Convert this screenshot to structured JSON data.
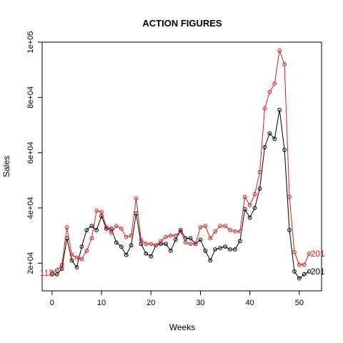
{
  "chart_data": {
    "type": "line",
    "title": "ACTION FIGURES",
    "xlabel": "Weeks",
    "ylabel": "Sales",
    "xlim": [
      -2,
      54.5
    ],
    "ylim": [
      10000,
      100000
    ],
    "x_ticks": [
      0,
      10,
      20,
      30,
      40,
      50
    ],
    "y_ticks": [
      20000,
      40000,
      60000,
      80000,
      100000
    ],
    "y_tick_labels": [
      "2e+04",
      "4e+04",
      "6e+04",
      "8e+04",
      "1e+05"
    ],
    "grid": false,
    "legend": "none",
    "x": [
      0,
      1,
      2,
      3,
      4,
      5,
      6,
      7,
      8,
      9,
      10,
      11,
      12,
      13,
      14,
      15,
      16,
      17,
      18,
      19,
      20,
      21,
      22,
      23,
      24,
      25,
      26,
      27,
      28,
      29,
      30,
      31,
      32,
      33,
      34,
      35,
      36,
      37,
      38,
      39,
      40,
      41,
      42,
      43,
      44,
      45,
      46,
      47,
      48,
      49,
      50,
      51,
      52
    ],
    "series": [
      {
        "color": "#000000",
        "end_label": "201",
        "start_label": "",
        "values": [
          16000,
          16000,
          18000,
          29000,
          21000,
          18500,
          26000,
          32000,
          33500,
          32000,
          37000,
          32500,
          32500,
          27500,
          26000,
          23000,
          26500,
          38000,
          27000,
          23500,
          22500,
          26500,
          27000,
          27000,
          24500,
          28500,
          32000,
          29000,
          29000,
          27000,
          28500,
          24500,
          21000,
          25000,
          25500,
          26000,
          25000,
          25000,
          28000,
          39500,
          36500,
          40000,
          47000,
          62000,
          67000,
          65000,
          75500,
          61000,
          32000,
          17000,
          14500,
          16000,
          17000
        ]
      },
      {
        "color": "#e31a1c",
        "end_label": "201",
        "start_label": "112",
        "values": [
          16500,
          17500,
          19500,
          33000,
          23000,
          22000,
          21500,
          24500,
          29000,
          39000,
          38500,
          33000,
          31000,
          33500,
          32500,
          29500,
          30000,
          43500,
          28500,
          27000,
          27000,
          26500,
          28000,
          29500,
          30000,
          30000,
          31500,
          27500,
          27000,
          27000,
          33000,
          33500,
          29000,
          31500,
          33500,
          33500,
          32000,
          31500,
          31500,
          44000,
          41000,
          45000,
          53000,
          76000,
          82000,
          85000,
          97000,
          92000,
          44000,
          24000,
          19500,
          19500,
          23500
        ]
      }
    ]
  }
}
